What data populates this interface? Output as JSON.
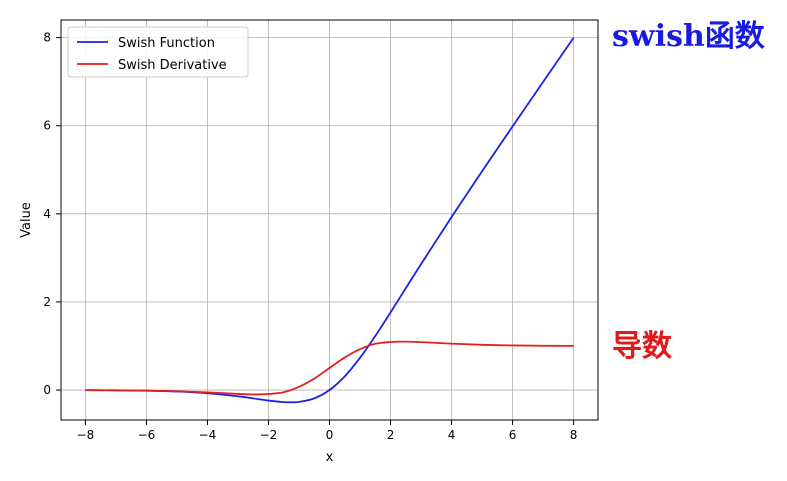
{
  "chart_data": {
    "type": "line",
    "title": "",
    "xlabel": "x",
    "ylabel": "Value",
    "xlim": [
      -8.8,
      8.8
    ],
    "ylim": [
      -0.68,
      8.4
    ],
    "xticks": [
      -8,
      -6,
      -4,
      -2,
      0,
      2,
      4,
      6,
      8
    ],
    "xtick_labels": [
      "−8",
      "−6",
      "−4",
      "−2",
      "0",
      "2",
      "4",
      "6",
      "8"
    ],
    "yticks": [
      0,
      2,
      4,
      6,
      8
    ],
    "ytick_labels": [
      "0",
      "2",
      "4",
      "6",
      "8"
    ],
    "grid": true,
    "legend_position": "top-left",
    "series": [
      {
        "name": "Swish Function",
        "color": "#1f1fe6",
        "x": [
          -8,
          -7,
          -6,
          -5,
          -4,
          -3,
          -2.5,
          -2,
          -1.5,
          -1.25,
          -1,
          -0.5,
          0,
          0.5,
          1,
          1.5,
          2,
          3,
          4,
          5,
          6,
          7,
          8
        ],
        "y": [
          -0.0027,
          -0.0064,
          -0.0148,
          -0.0335,
          -0.0719,
          -0.1423,
          -0.1896,
          -0.2384,
          -0.2736,
          -0.2785,
          -0.2689,
          -0.1888,
          0,
          0.3112,
          0.7311,
          1.2264,
          1.7616,
          2.8577,
          3.9281,
          4.9665,
          5.9852,
          6.9936,
          7.9973
        ]
      },
      {
        "name": "Swish Derivative",
        "color": "#e61f1f",
        "x": [
          -8,
          -7,
          -6,
          -5,
          -4,
          -3,
          -2.4,
          -2,
          -1.5,
          -1,
          -0.5,
          0,
          0.5,
          1,
          1.5,
          2,
          2.4,
          3,
          4,
          5,
          6,
          7,
          8
        ],
        "y": [
          -0.0024,
          -0.0055,
          -0.0123,
          -0.0266,
          -0.053,
          -0.0881,
          -0.0999,
          -0.0908,
          -0.05,
          0.0723,
          0.26,
          0.5,
          0.74,
          0.9277,
          1.05,
          1.0908,
          1.0999,
          1.0881,
          1.053,
          1.0266,
          1.0123,
          1.0055,
          1.0024
        ]
      }
    ]
  },
  "annotations": [
    {
      "id": "annot-1",
      "text": "swish函数",
      "color": "#1a1ae0"
    },
    {
      "id": "annot-2",
      "text": "导数",
      "color": "#e01a1a"
    }
  ]
}
